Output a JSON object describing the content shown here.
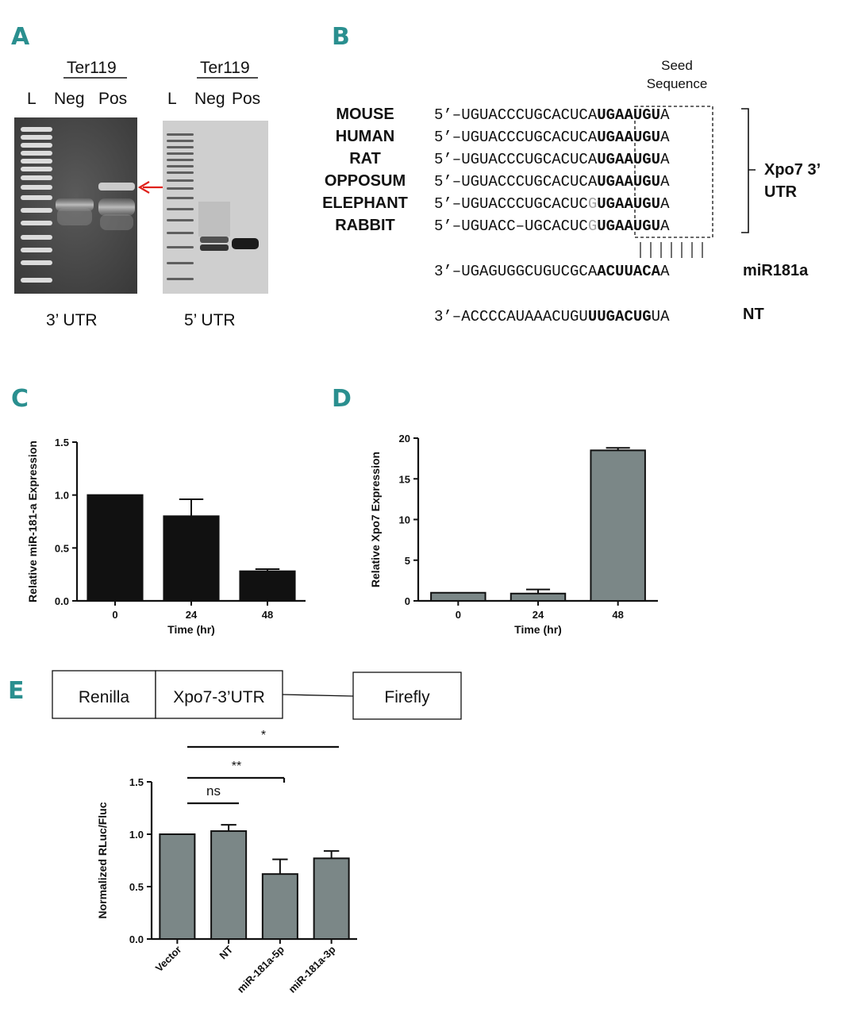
{
  "panels": {
    "a": {
      "letter": "A",
      "group_label_left": "Ter119",
      "group_label_right": "Ter119",
      "lane_ladder": "L",
      "lane_neg": "Neg",
      "lane_pos": "Pos",
      "caption_left": "3’ UTR",
      "caption_right": "5’ UTR"
    },
    "b": {
      "letter": "B",
      "seed_line1": "Seed",
      "seed_line2": "Sequence",
      "species": [
        {
          "name": "MOUSE",
          "prefix": "5’–UGUACCCUGCACUCA",
          "grey": "",
          "seed": "UGAAUGU",
          "suffix": "A"
        },
        {
          "name": "HUMAN",
          "prefix": "5’–UGUACCCUGCACUCA",
          "grey": "",
          "seed": "UGAAUGU",
          "suffix": "A"
        },
        {
          "name": "RAT",
          "prefix": "5’–UGUACCCUGCACUCA",
          "grey": "",
          "seed": "UGAAUGU",
          "suffix": "A"
        },
        {
          "name": "OPPOSUM",
          "prefix": "5’–UGUACCCUGCACUCA",
          "grey": "",
          "seed": "UGAAUGU",
          "suffix": "A"
        },
        {
          "name": "ELEPHANT",
          "prefix": "5’–UGUACCCUGCACUC",
          "grey": "G",
          "seed": "UGAAUGU",
          "suffix": "A"
        },
        {
          "name": "RABBIT",
          "prefix": "5’–UGUACC–UGCACUC",
          "grey": "G",
          "seed": "UGAAUGU",
          "suffix": "A"
        }
      ],
      "bracket_label_line1": "Xpo7 3’",
      "bracket_label_line2": "UTR",
      "mir_prefix": "3’–UGAGUGGCUGUCGCA",
      "mir_seed": "ACUUACA",
      "mir_suffix": "A",
      "mir_label": "miR181a",
      "nt_prefix": "3’–ACCCCAUAAACUGU",
      "nt_seed": "UUGACUG",
      "nt_suffix": "UA",
      "nt_label": "NT"
    },
    "c": {
      "letter": "C"
    },
    "d": {
      "letter": "D"
    },
    "e": {
      "letter": "E",
      "construct": [
        "Renilla",
        "Xpo7-3’UTR",
        "Firefly"
      ],
      "sig_ns": "ns",
      "sig_double": "**",
      "sig_single": "*"
    }
  },
  "chart_data": [
    {
      "id": "C",
      "type": "bar",
      "categories": [
        "0",
        "24",
        "48"
      ],
      "values": [
        1.0,
        0.8,
        0.28
      ],
      "errors": [
        0.0,
        0.16,
        0.02
      ],
      "xlabel": "Time (hr)",
      "ylabel": "Relative miR-181-a Expression",
      "ylim": [
        0,
        1.5
      ],
      "yticks": [
        "0.0",
        "0.5",
        "1.0",
        "1.5"
      ],
      "bar_color": "#111111"
    },
    {
      "id": "D",
      "type": "bar",
      "categories": [
        "0",
        "24",
        "48"
      ],
      "values": [
        1.0,
        0.9,
        18.5
      ],
      "errors": [
        0.0,
        0.5,
        0.3
      ],
      "xlabel": "Time (hr)",
      "ylabel": "Relative Xpo7 Expression",
      "ylim": [
        0,
        20
      ],
      "yticks": [
        "0",
        "5",
        "10",
        "15",
        "20"
      ],
      "bar_color": "#7b8787"
    },
    {
      "id": "E",
      "type": "bar",
      "categories": [
        "Vector",
        "NT",
        "miR-181a-5p",
        "miR-181a-3p"
      ],
      "values": [
        1.0,
        1.03,
        0.62,
        0.77
      ],
      "errors": [
        0.0,
        0.06,
        0.14,
        0.07
      ],
      "xlabel": "",
      "ylabel": "Normalized RLuc/Fluc",
      "ylim": [
        0,
        1.5
      ],
      "yticks": [
        "0.0",
        "0.5",
        "1.0",
        "1.5"
      ],
      "bar_color": "#7b8787"
    }
  ]
}
